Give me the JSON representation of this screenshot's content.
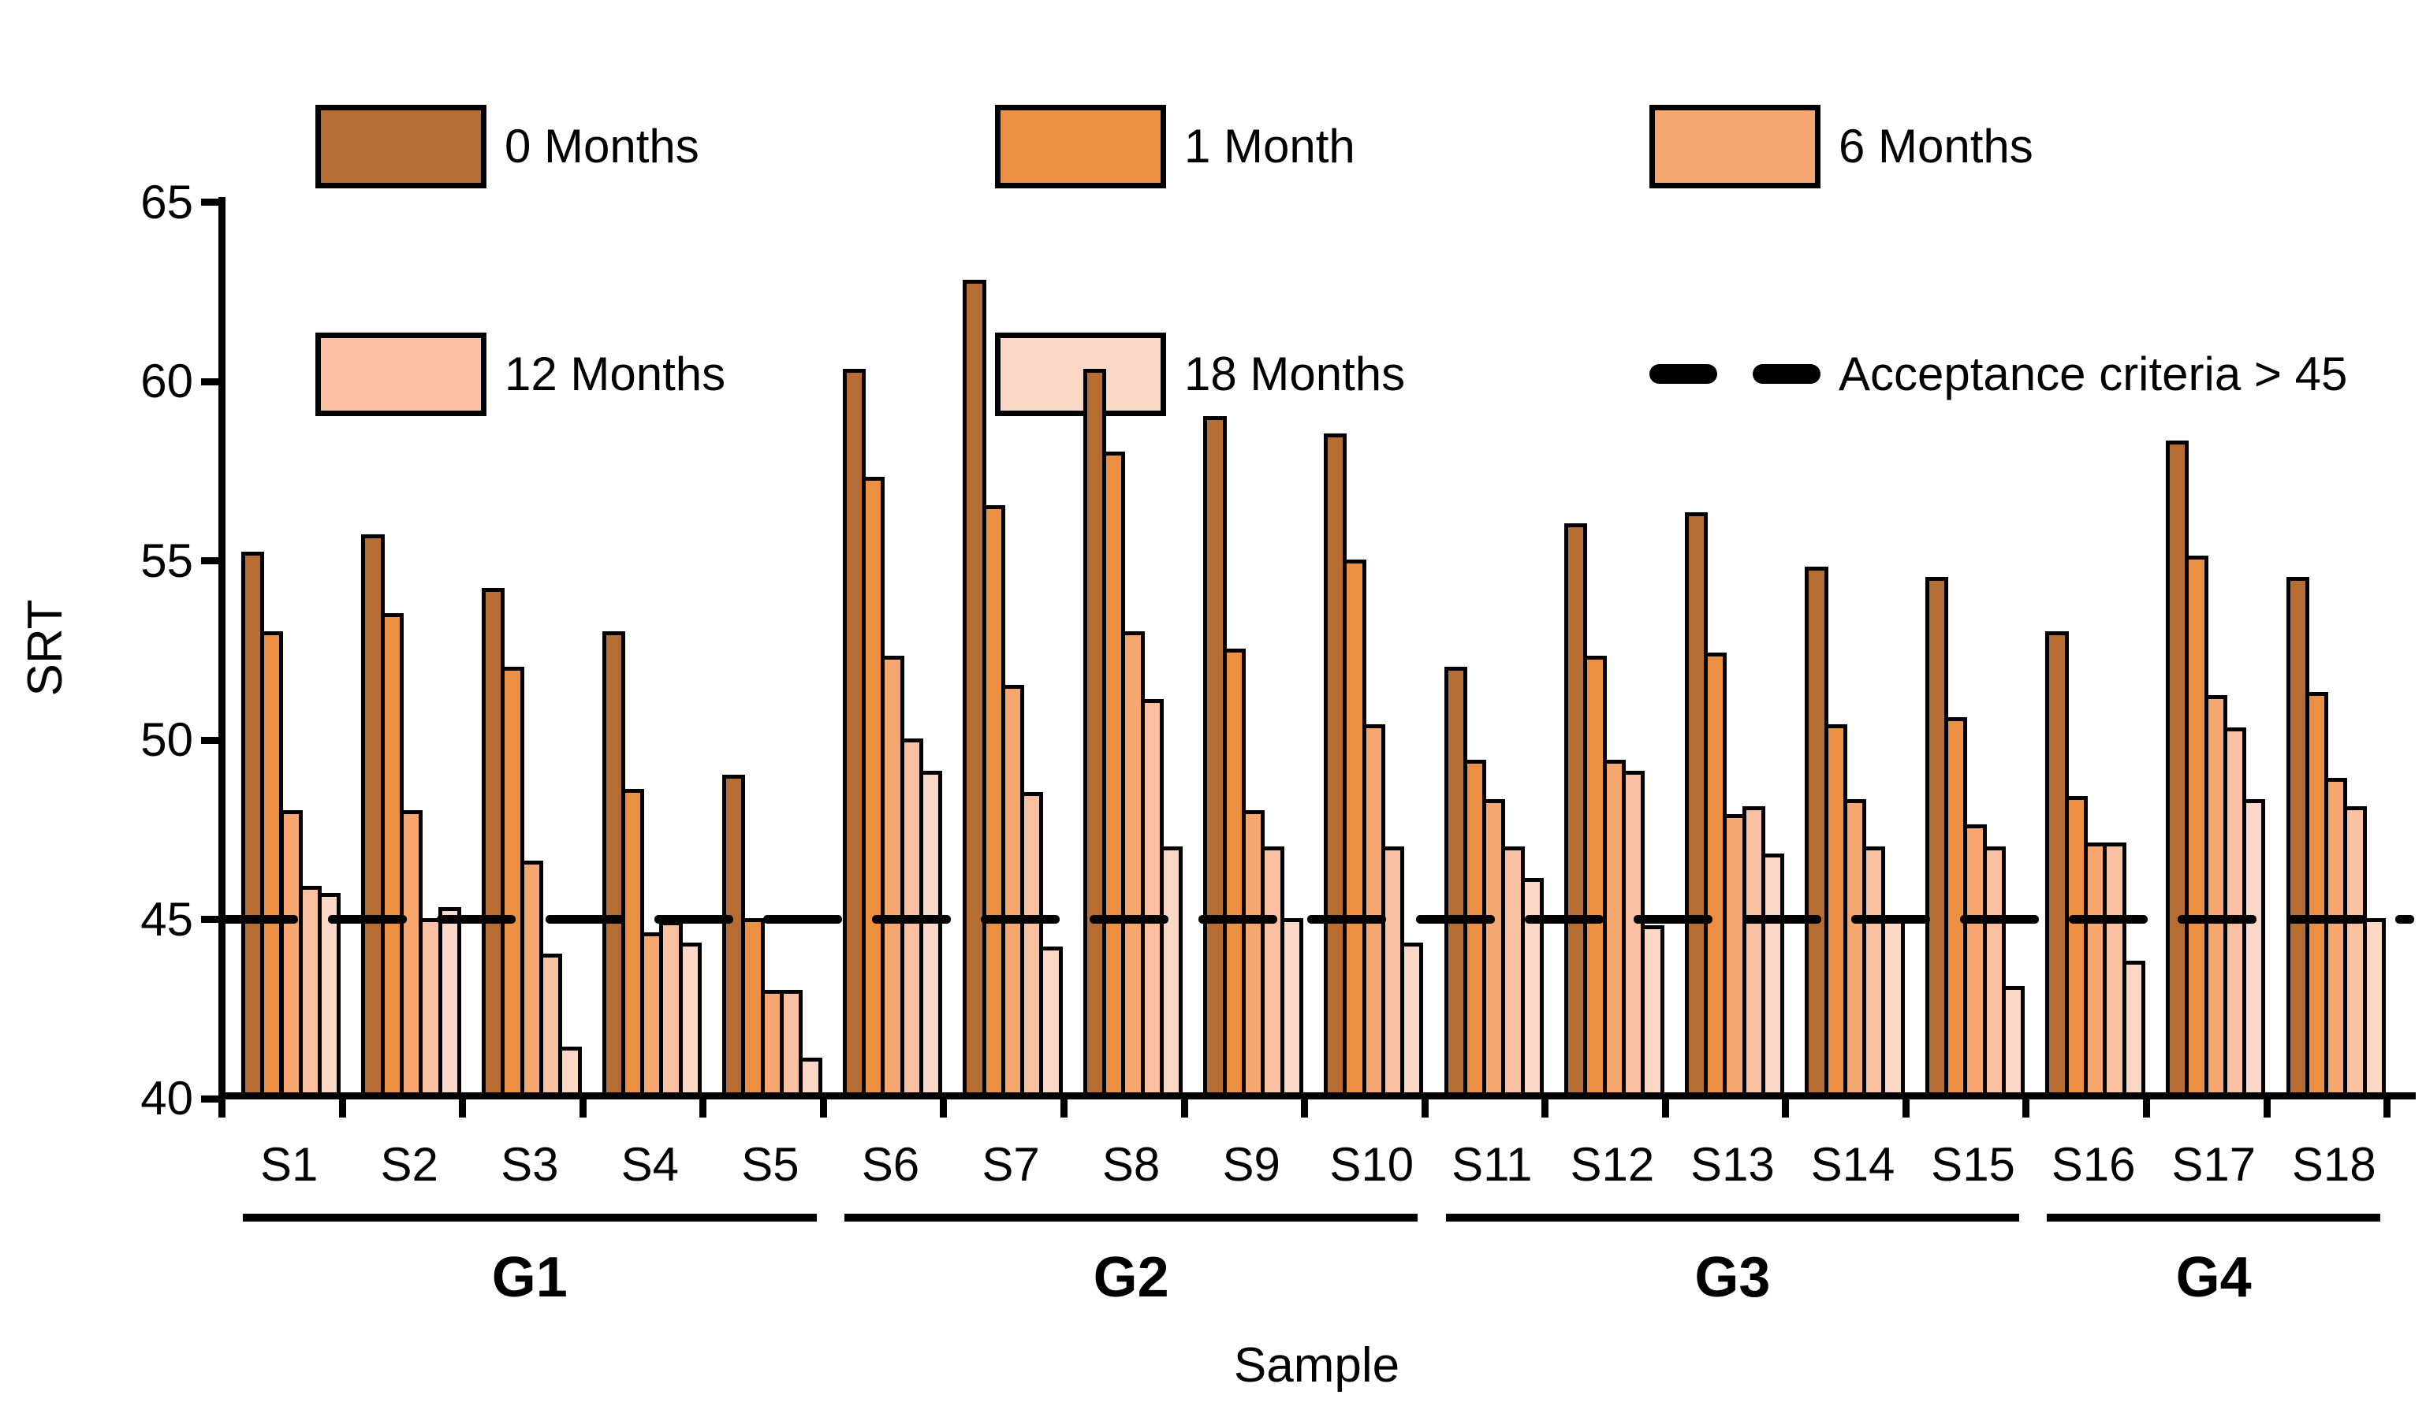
{
  "legend": {
    "items": [
      "0 Months",
      "1 Month",
      "6 Months",
      "12 Months",
      "18 Months",
      "Acceptance criteria > 45"
    ]
  },
  "chart_data": {
    "type": "bar",
    "title": "",
    "xlabel": "Sample",
    "ylabel": "SRT",
    "ylim": [
      40,
      65
    ],
    "yticks": [
      65,
      60,
      55,
      50,
      45,
      40
    ],
    "grid": false,
    "legend_position": "top",
    "categories": [
      "S1",
      "S2",
      "S3",
      "S4",
      "S5",
      "S6",
      "S7",
      "S8",
      "S9",
      "S10",
      "S11",
      "S12",
      "S13",
      "S14",
      "S15",
      "S16",
      "S17",
      "S18"
    ],
    "groups": [
      {
        "label": "G1",
        "from": 0,
        "to": 4
      },
      {
        "label": "G2",
        "from": 5,
        "to": 9
      },
      {
        "label": "G3",
        "from": 10,
        "to": 14
      },
      {
        "label": "G4",
        "from": 15,
        "to": 17
      }
    ],
    "series": [
      {
        "name": "0 Months",
        "color": "#b56d33",
        "values": [
          55.2,
          55.7,
          54.2,
          53.0,
          49.0,
          60.3,
          62.8,
          60.3,
          59.0,
          58.5,
          52.0,
          56.0,
          56.3,
          54.8,
          54.5,
          53.0,
          58.3,
          54.5
        ]
      },
      {
        "name": "1 Month",
        "color": "#ec9144",
        "values": [
          53.0,
          53.5,
          52.0,
          48.6,
          45.0,
          57.3,
          56.5,
          58.0,
          52.5,
          55.0,
          49.4,
          52.3,
          52.4,
          50.4,
          50.6,
          48.4,
          55.1,
          51.3
        ]
      },
      {
        "name": "6 Months",
        "color": "#f6a76f",
        "values": [
          48.0,
          48.0,
          46.6,
          44.6,
          43.0,
          52.3,
          51.5,
          53.0,
          48.0,
          50.4,
          48.3,
          49.4,
          47.9,
          48.3,
          47.6,
          47.1,
          51.2,
          48.9
        ]
      },
      {
        "name": "12 Months",
        "color": "#f9c1a2",
        "values": [
          45.9,
          45.0,
          44.0,
          44.9,
          43.0,
          50.0,
          48.5,
          51.1,
          47.0,
          47.0,
          47.0,
          49.1,
          48.1,
          47.0,
          47.0,
          47.1,
          50.3,
          48.1
        ]
      },
      {
        "name": "18 Months",
        "color": "#fad8c5",
        "values": [
          45.7,
          45.3,
          41.4,
          44.3,
          41.1,
          49.1,
          44.2,
          47.0,
          45.0,
          44.3,
          46.1,
          44.8,
          46.8,
          45.0,
          43.1,
          43.8,
          48.3,
          45.0
        ]
      }
    ],
    "reference_line": {
      "value": 45,
      "label": "Acceptance criteria > 45",
      "style": "dashed",
      "color": "#000000"
    }
  }
}
